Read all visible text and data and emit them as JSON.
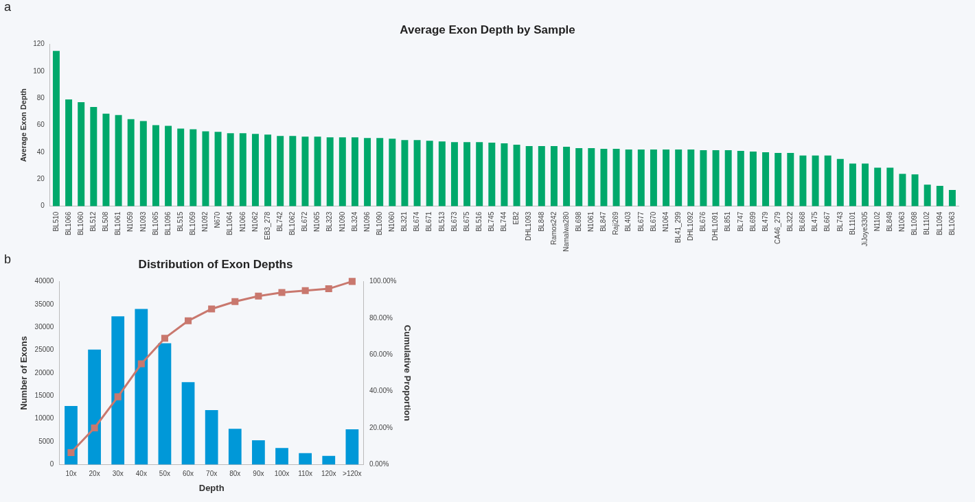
{
  "chart_data": [
    {
      "type": "bar",
      "title": "Average Exon Depth by Sample",
      "ylabel": "Average Exon Depth",
      "annotations": [
        "a"
      ],
      "categories": [
        "BL510",
        "BL1066",
        "BL1060",
        "BL512",
        "BL508",
        "BL1061",
        "N1059",
        "N1093",
        "BL1065",
        "BL1096",
        "BL515",
        "BL1059",
        "N1092",
        "N670",
        "BL1064",
        "N1066",
        "N1062",
        "EB3_278",
        "BL742",
        "BL1062",
        "BL672",
        "N1065",
        "BL323",
        "N1090",
        "BL324",
        "N1096",
        "BL1090",
        "N1060",
        "BL321",
        "BL674",
        "BL671",
        "BL513",
        "BL673",
        "BL675",
        "BL516",
        "BL745",
        "BL744",
        "EB2",
        "DHL1093",
        "BL848",
        "Ramos242",
        "Namalwa280",
        "BL698",
        "N1061",
        "BL847",
        "Raji269",
        "BL403",
        "BL677",
        "BL670",
        "N1064",
        "BL41_299",
        "DHL1092",
        "BL676",
        "DHL1091",
        "BL851",
        "BL747",
        "BL699",
        "BL479",
        "CA46_279",
        "BL322",
        "BL668",
        "BL475",
        "BL667",
        "BL743",
        "BL1101",
        "JiJoye3305",
        "N1102",
        "BL849",
        "N1063",
        "BL1098",
        "BL1102",
        "BL1094",
        "BL1063"
      ],
      "values": [
        115,
        79,
        77,
        73.5,
        68.5,
        67.5,
        64.5,
        63,
        60,
        59.5,
        57.5,
        57,
        55.5,
        55,
        54,
        54,
        53.5,
        53,
        52,
        52,
        51.5,
        51.5,
        51,
        51,
        51,
        50.5,
        50.5,
        50,
        49,
        49,
        48.5,
        48,
        47.5,
        47.5,
        47.5,
        47,
        46.5,
        45.5,
        44.5,
        44.5,
        44.5,
        44,
        43,
        43,
        42.5,
        42.5,
        42,
        42,
        42,
        42,
        42,
        42,
        41.5,
        41.5,
        41.5,
        41,
        40.5,
        40,
        39.5,
        39.5,
        37.5,
        37.5,
        37.5,
        35,
        31.5,
        31.5,
        28.5,
        28.5,
        24,
        23.5,
        16,
        15,
        12
      ],
      "color": "#00a86b",
      "ylim": [
        0,
        120
      ],
      "yticks": [
        0,
        20,
        40,
        60,
        80,
        100,
        120
      ]
    },
    {
      "type": "bar",
      "title": "Distribution of Exon Depths",
      "xlabel": "Depth",
      "ylabel": "Number of Exons",
      "y2label": "Cumulative Proportion",
      "annotations": [
        "b"
      ],
      "categories": [
        "10x",
        "20x",
        "30x",
        "40x",
        "50x",
        "60x",
        "70x",
        "80x",
        "90x",
        "100x",
        "110x",
        "120x",
        ">120x"
      ],
      "series": [
        {
          "type": "bar",
          "color": "#0098d8",
          "values": [
            12800,
            25100,
            32400,
            34000,
            26500,
            18000,
            11900,
            7800,
            5300,
            3600,
            2500,
            1900,
            7700
          ]
        },
        {
          "type": "line",
          "axis": "y2",
          "marker": "square",
          "color": "#c9786e",
          "values": [
            6.5,
            20,
            37,
            55,
            69,
            78.5,
            85,
            89,
            92,
            94,
            95,
            96,
            100
          ]
        }
      ],
      "ylim": [
        0,
        40000
      ],
      "yticks": [
        0,
        5000,
        10000,
        15000,
        20000,
        25000,
        30000,
        35000,
        40000
      ],
      "y2lim": [
        0,
        100
      ],
      "y2ticks": [
        {
          "value": 0,
          "label": "0.00%"
        },
        {
          "value": 20,
          "label": "20.00%"
        },
        {
          "value": 40,
          "label": "40.00%"
        },
        {
          "value": 60,
          "label": "60.00%"
        },
        {
          "value": 80,
          "label": "80.00%"
        },
        {
          "value": 100,
          "label": "100.00%"
        }
      ]
    }
  ]
}
